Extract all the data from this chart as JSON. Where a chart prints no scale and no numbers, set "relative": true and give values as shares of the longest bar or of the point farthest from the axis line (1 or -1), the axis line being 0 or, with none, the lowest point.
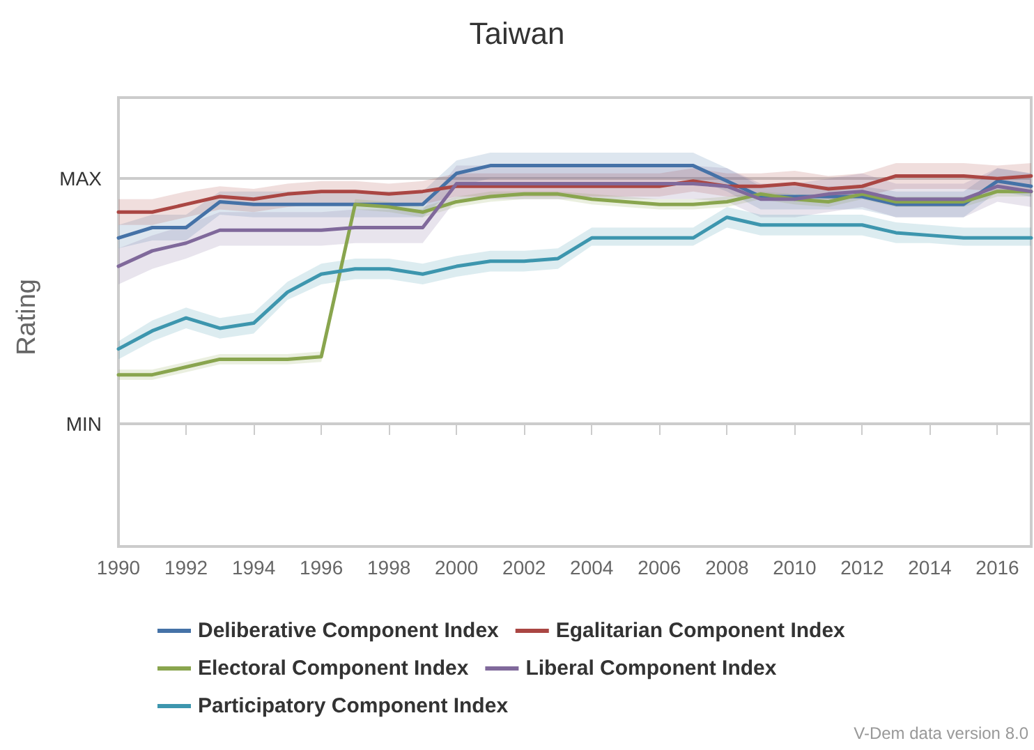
{
  "chart_data": {
    "type": "line",
    "title": "Taiwan",
    "ylabel": "Rating",
    "annotations": [
      "V-Dem data version 8.0"
    ],
    "relative": true,
    "x": [
      1990,
      1991,
      1992,
      1993,
      1994,
      1995,
      1996,
      1997,
      1998,
      1999,
      2000,
      2001,
      2002,
      2003,
      2004,
      2005,
      2006,
      2007,
      2008,
      2009,
      2010,
      2011,
      2012,
      2013,
      2014,
      2015,
      2016,
      2017
    ],
    "xlim": [
      1990,
      2017
    ],
    "xticks": [
      1990,
      1992,
      1994,
      1996,
      1998,
      2000,
      2002,
      2004,
      2006,
      2008,
      2010,
      2012,
      2014,
      2016
    ],
    "ref_lines": [
      {
        "axis": "y",
        "value": 0.95,
        "label": "MAX",
        "color": "#cccccc"
      },
      {
        "axis": "y",
        "value": 0,
        "label": "MIN",
        "color": "#cccccc"
      }
    ],
    "legend": "bottom",
    "marker": "none",
    "line_style": "solid",
    "series": [
      {
        "name": "Deliberative Component Index",
        "color": "#4572a7",
        "values": [
          0.72,
          0.76,
          0.76,
          0.86,
          0.85,
          0.85,
          0.85,
          0.85,
          0.85,
          0.85,
          0.97,
          1,
          1,
          1,
          1,
          1,
          1,
          1,
          0.94,
          0.88,
          0.88,
          0.88,
          0.88,
          0.85,
          0.85,
          0.85,
          0.94,
          0.92
        ],
        "lower": [
          0.68,
          0.71,
          0.71,
          0.81,
          0.8,
          0.8,
          0.8,
          0.8,
          0.8,
          0.8,
          0.92,
          0.95,
          0.95,
          0.95,
          0.95,
          0.95,
          0.95,
          0.95,
          0.9,
          0.83,
          0.83,
          0.83,
          0.83,
          0.8,
          0.8,
          0.8,
          0.9,
          0.88
        ],
        "upper": [
          0.77,
          0.81,
          0.81,
          0.9,
          0.9,
          0.9,
          0.9,
          0.9,
          0.9,
          0.9,
          1.02,
          1.05,
          1.05,
          1.05,
          1.05,
          1.05,
          1.05,
          1.05,
          0.99,
          0.92,
          0.92,
          0.92,
          0.92,
          0.9,
          0.9,
          0.9,
          0.99,
          0.97
        ]
      },
      {
        "name": "Egalitarian Component Index",
        "color": "#aa4643",
        "values": [
          0.82,
          0.82,
          0.85,
          0.88,
          0.87,
          0.89,
          0.9,
          0.9,
          0.89,
          0.9,
          0.92,
          0.92,
          0.92,
          0.92,
          0.92,
          0.92,
          0.92,
          0.94,
          0.92,
          0.92,
          0.93,
          0.91,
          0.92,
          0.96,
          0.96,
          0.96,
          0.95,
          0.96
        ],
        "lower": [
          0.77,
          0.77,
          0.8,
          0.83,
          0.82,
          0.84,
          0.85,
          0.85,
          0.84,
          0.85,
          0.88,
          0.88,
          0.88,
          0.88,
          0.88,
          0.88,
          0.88,
          0.9,
          0.88,
          0.88,
          0.89,
          0.87,
          0.88,
          0.91,
          0.91,
          0.91,
          0.9,
          0.91
        ],
        "upper": [
          0.87,
          0.87,
          0.9,
          0.92,
          0.91,
          0.93,
          0.94,
          0.94,
          0.93,
          0.94,
          0.97,
          0.97,
          0.97,
          0.97,
          0.97,
          0.97,
          0.97,
          0.99,
          0.97,
          0.97,
          0.98,
          0.96,
          0.97,
          1.01,
          1.01,
          1.01,
          1,
          1.01
        ]
      },
      {
        "name": "Electoral Component Index",
        "color": "#89a54e",
        "values": [
          0.19,
          0.19,
          0.22,
          0.25,
          0.25,
          0.25,
          0.26,
          0.85,
          0.84,
          0.82,
          0.86,
          0.88,
          0.89,
          0.89,
          0.87,
          0.86,
          0.85,
          0.85,
          0.86,
          0.89,
          0.87,
          0.86,
          0.89,
          0.86,
          0.86,
          0.86,
          0.9,
          0.9
        ],
        "lower": [
          0.17,
          0.17,
          0.2,
          0.23,
          0.23,
          0.23,
          0.24,
          0.83,
          0.82,
          0.8,
          0.84,
          0.86,
          0.87,
          0.87,
          0.85,
          0.84,
          0.83,
          0.83,
          0.84,
          0.87,
          0.85,
          0.84,
          0.87,
          0.84,
          0.84,
          0.84,
          0.88,
          0.88
        ],
        "upper": [
          0.21,
          0.21,
          0.24,
          0.27,
          0.27,
          0.27,
          0.28,
          0.87,
          0.86,
          0.84,
          0.88,
          0.9,
          0.9,
          0.9,
          0.89,
          0.88,
          0.87,
          0.87,
          0.88,
          0.9,
          0.89,
          0.88,
          0.9,
          0.88,
          0.88,
          0.88,
          0.91,
          0.91
        ]
      },
      {
        "name": "Liberal Component Index",
        "color": "#80699b",
        "values": [
          0.61,
          0.67,
          0.7,
          0.75,
          0.75,
          0.75,
          0.75,
          0.76,
          0.76,
          0.76,
          0.93,
          0.93,
          0.93,
          0.93,
          0.93,
          0.93,
          0.93,
          0.93,
          0.92,
          0.87,
          0.87,
          0.89,
          0.9,
          0.87,
          0.87,
          0.87,
          0.92,
          0.9
        ],
        "lower": [
          0.54,
          0.6,
          0.64,
          0.69,
          0.69,
          0.69,
          0.69,
          0.7,
          0.7,
          0.7,
          0.87,
          0.87,
          0.87,
          0.87,
          0.87,
          0.87,
          0.87,
          0.87,
          0.86,
          0.8,
          0.8,
          0.82,
          0.84,
          0.8,
          0.8,
          0.8,
          0.86,
          0.84
        ],
        "upper": [
          0.68,
          0.73,
          0.77,
          0.82,
          0.82,
          0.82,
          0.82,
          0.83,
          0.83,
          0.83,
          1,
          1,
          1,
          1,
          1,
          1,
          1,
          1,
          0.99,
          0.93,
          0.93,
          0.95,
          0.97,
          0.93,
          0.93,
          0.93,
          0.99,
          0.97
        ]
      },
      {
        "name": "Participatory Component Index",
        "color": "#3d96ae",
        "values": [
          0.29,
          0.36,
          0.41,
          0.37,
          0.39,
          0.51,
          0.58,
          0.6,
          0.6,
          0.58,
          0.61,
          0.63,
          0.63,
          0.64,
          0.72,
          0.72,
          0.72,
          0.72,
          0.8,
          0.77,
          0.77,
          0.77,
          0.77,
          0.74,
          0.73,
          0.72,
          0.72,
          0.72
        ],
        "lower": [
          0.25,
          0.32,
          0.37,
          0.33,
          0.35,
          0.48,
          0.54,
          0.56,
          0.56,
          0.54,
          0.57,
          0.59,
          0.59,
          0.6,
          0.69,
          0.69,
          0.69,
          0.69,
          0.76,
          0.73,
          0.73,
          0.73,
          0.73,
          0.7,
          0.7,
          0.69,
          0.69,
          0.69
        ],
        "upper": [
          0.32,
          0.4,
          0.45,
          0.41,
          0.43,
          0.55,
          0.62,
          0.64,
          0.64,
          0.62,
          0.65,
          0.67,
          0.67,
          0.68,
          0.76,
          0.76,
          0.76,
          0.76,
          0.84,
          0.81,
          0.81,
          0.81,
          0.81,
          0.78,
          0.77,
          0.76,
          0.76,
          0.76
        ]
      }
    ]
  }
}
